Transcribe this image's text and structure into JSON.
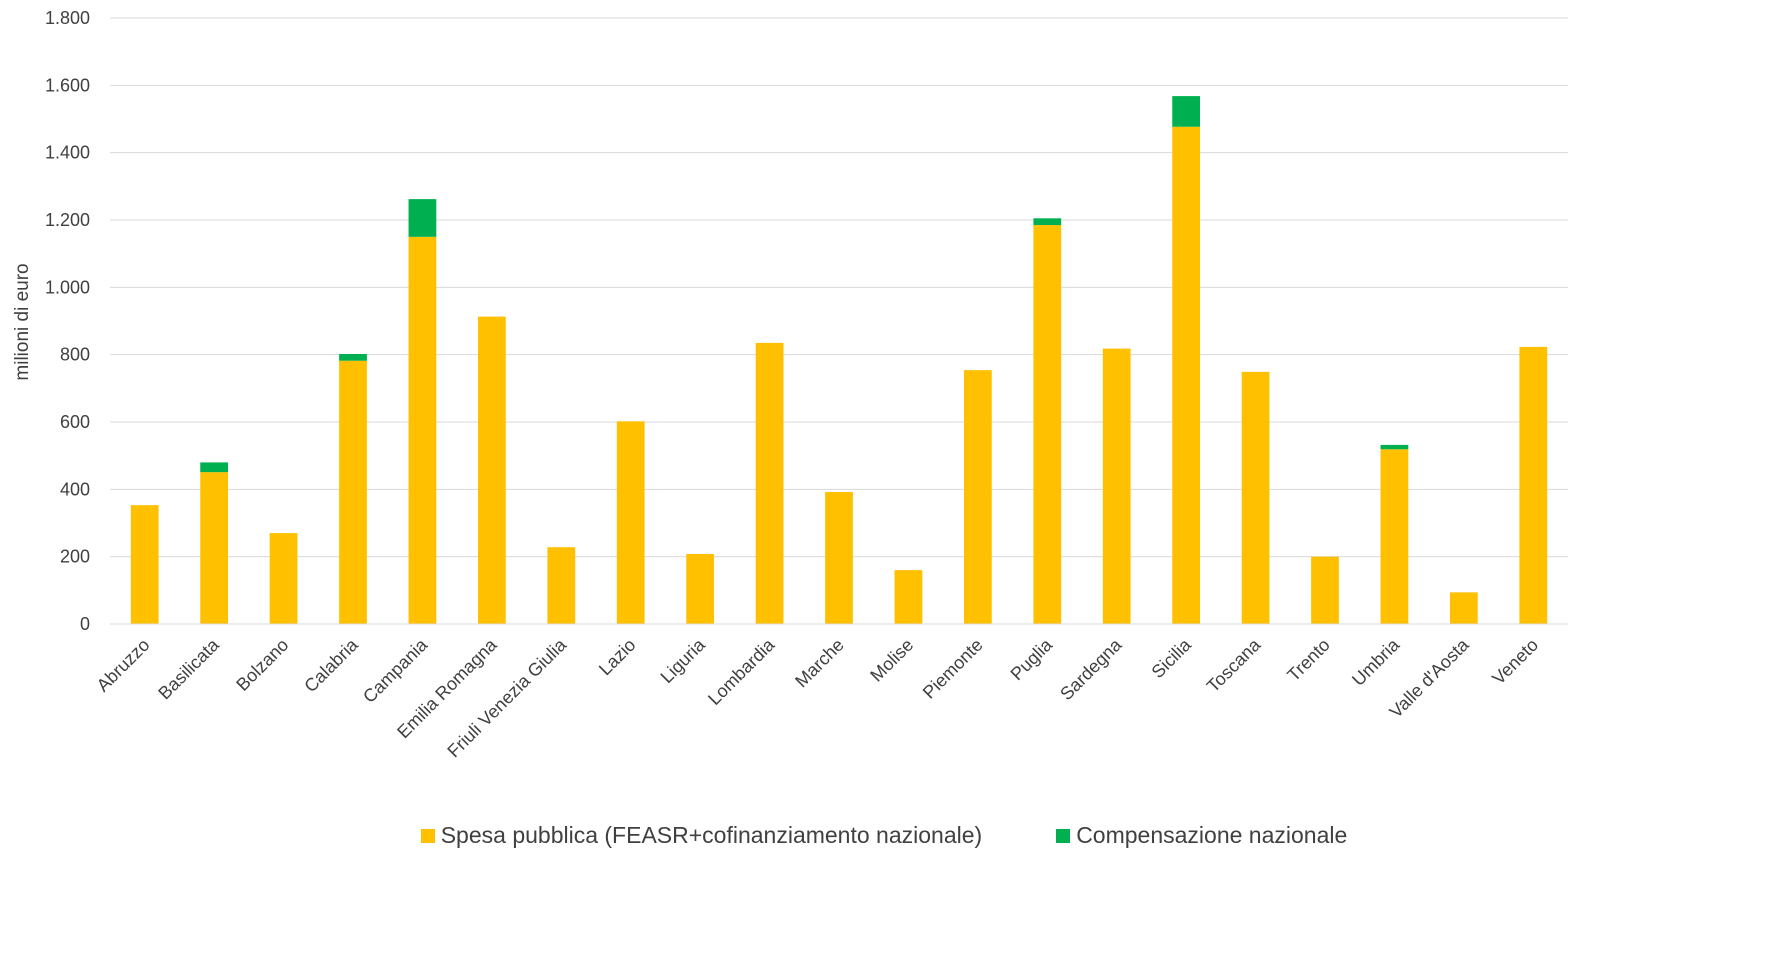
{
  "chart_data": {
    "type": "bar",
    "stacked": true,
    "ylabel": "milioni di euro",
    "ylim": [
      0,
      1800
    ],
    "yticks": [
      0,
      200,
      400,
      600,
      800,
      1000,
      1200,
      1400,
      1600,
      1800
    ],
    "ytick_labels": [
      "0",
      "200",
      "400",
      "600",
      "800",
      "1.000",
      "1.200",
      "1.400",
      "1.600",
      "1.800"
    ],
    "grid": true,
    "legend_position": "bottom",
    "categories": [
      "Abruzzo",
      "Basilicata",
      "Bolzano",
      "Calabria",
      "Campania",
      "Emilia Romagna",
      "Friuli Venezia Giulia",
      "Lazio",
      "Liguria",
      "Lombardia",
      "Marche",
      "Molise",
      "Piemonte",
      "Puglia",
      "Sardegna",
      "Sicilia",
      "Toscana",
      "Trento",
      "Umbria",
      "Valle d'Aosta",
      "Veneto"
    ],
    "series": [
      {
        "name": "Spesa pubblica (FEASR+cofinanziamento nazionale)",
        "color": "#FFC000",
        "values": [
          353,
          451,
          270,
          782,
          1150,
          913,
          228,
          602,
          208,
          835,
          392,
          160,
          754,
          1185,
          818,
          1477,
          749,
          200,
          519,
          94,
          823
        ]
      },
      {
        "name": "Compensazione nazionale",
        "color": "#00B050",
        "values": [
          0,
          29,
          0,
          20,
          112,
          0,
          0,
          0,
          0,
          0,
          0,
          0,
          0,
          20,
          0,
          91,
          0,
          0,
          13,
          0,
          0
        ]
      }
    ]
  }
}
